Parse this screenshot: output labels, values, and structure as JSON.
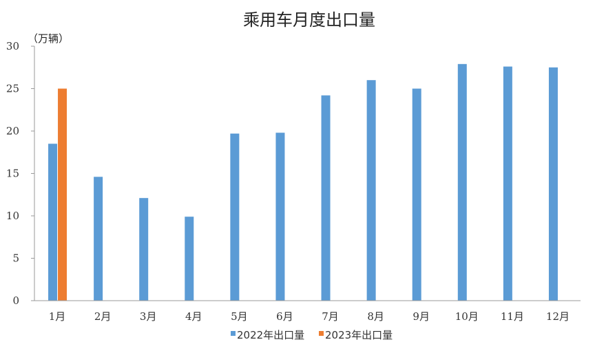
{
  "chart_data": {
    "type": "bar",
    "title": "乘用车月度出口量",
    "ylabel": "（万辆）",
    "xlabel": "",
    "categories": [
      "1月",
      "2月",
      "3月",
      "4月",
      "5月",
      "6月",
      "7月",
      "8月",
      "9月",
      "10月",
      "11月",
      "12月"
    ],
    "ylim": [
      0,
      30
    ],
    "yticks": [
      0,
      5,
      10,
      15,
      20,
      25,
      30
    ],
    "grid": false,
    "legend": "bottom",
    "series": [
      {
        "name": "2022年出口量",
        "color": "#5B9BD5",
        "values": [
          18.5,
          14.6,
          12.1,
          9.9,
          19.7,
          19.8,
          24.2,
          26.0,
          25.0,
          27.9,
          27.6,
          27.5
        ]
      },
      {
        "name": "2023年出口量",
        "color": "#ED7D31",
        "values": [
          25.0,
          null,
          null,
          null,
          null,
          null,
          null,
          null,
          null,
          null,
          null,
          null
        ]
      }
    ]
  }
}
